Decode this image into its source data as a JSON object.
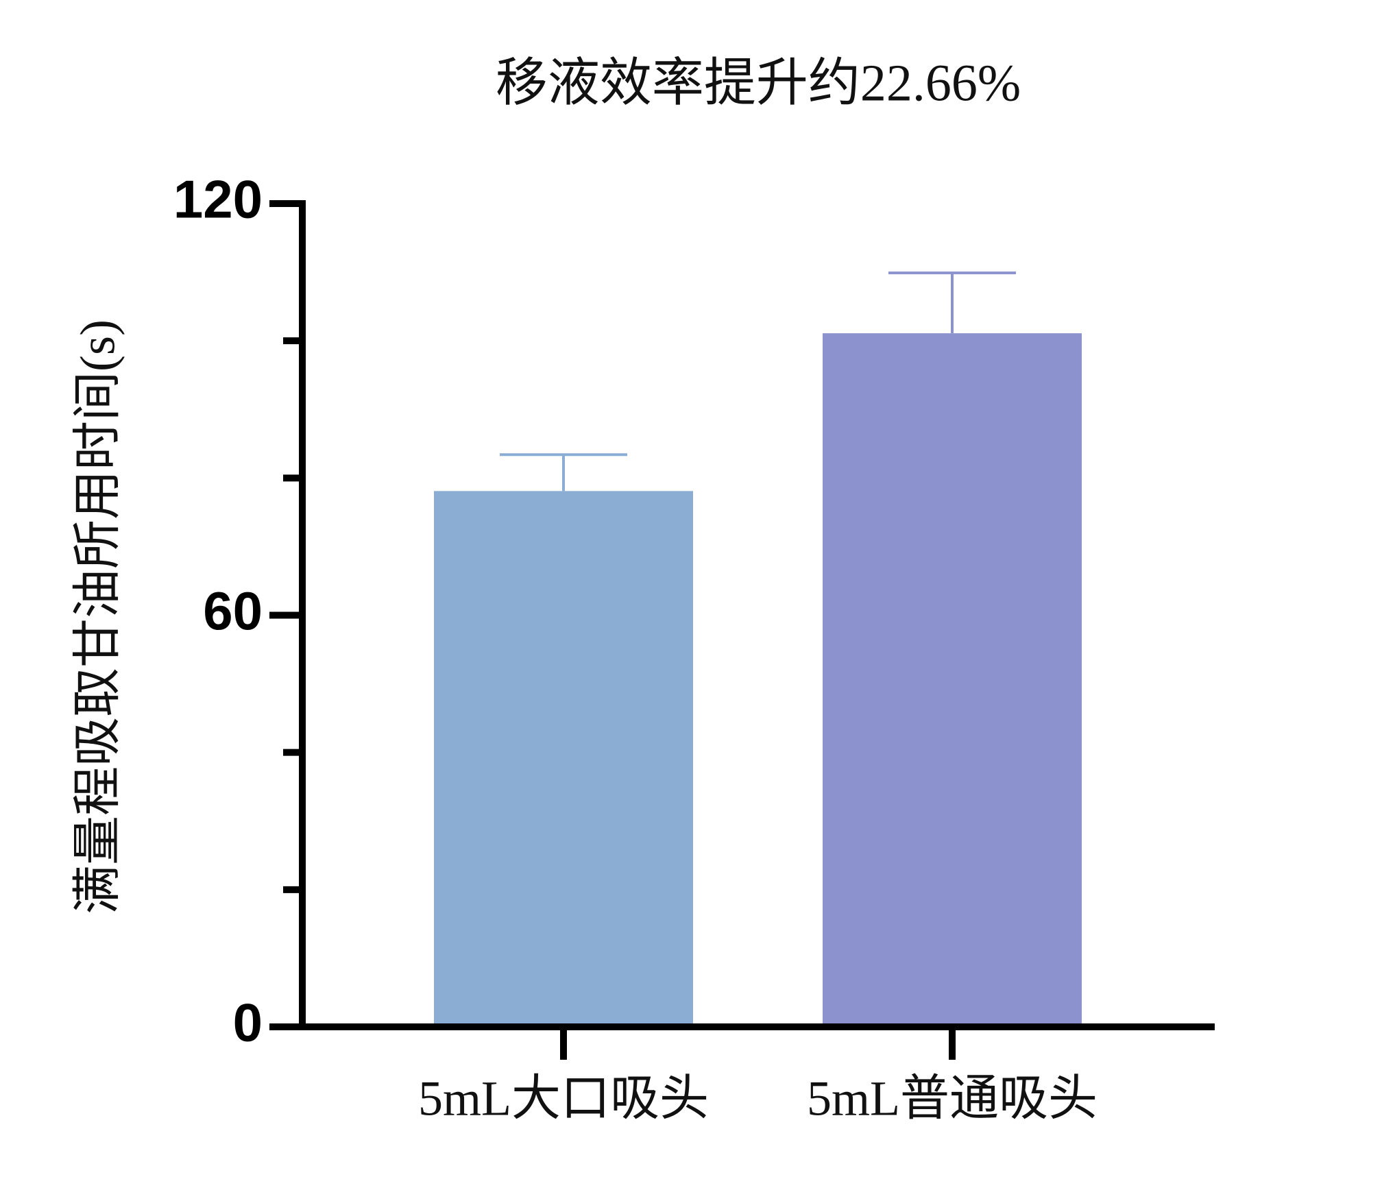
{
  "chart_data": {
    "type": "bar",
    "title": "移液效率提升约22.66%",
    "y_label": "满量程吸取甘油所用时间(s)",
    "categories": [
      "5mL大口吸头",
      "5mL普通吸头"
    ],
    "values": [
      78.1,
      101.1
    ],
    "errors": [
      5.3,
      8.8
    ],
    "colors": [
      "#8cadd3",
      "#8b92cd"
    ],
    "error_colors": [
      "#8cadd3",
      "#8b92cd"
    ],
    "ylim": [
      0,
      120
    ],
    "yticks": [
      0,
      60,
      120
    ],
    "minor_yticks": [
      20,
      40,
      80,
      100
    ],
    "grid": false
  }
}
